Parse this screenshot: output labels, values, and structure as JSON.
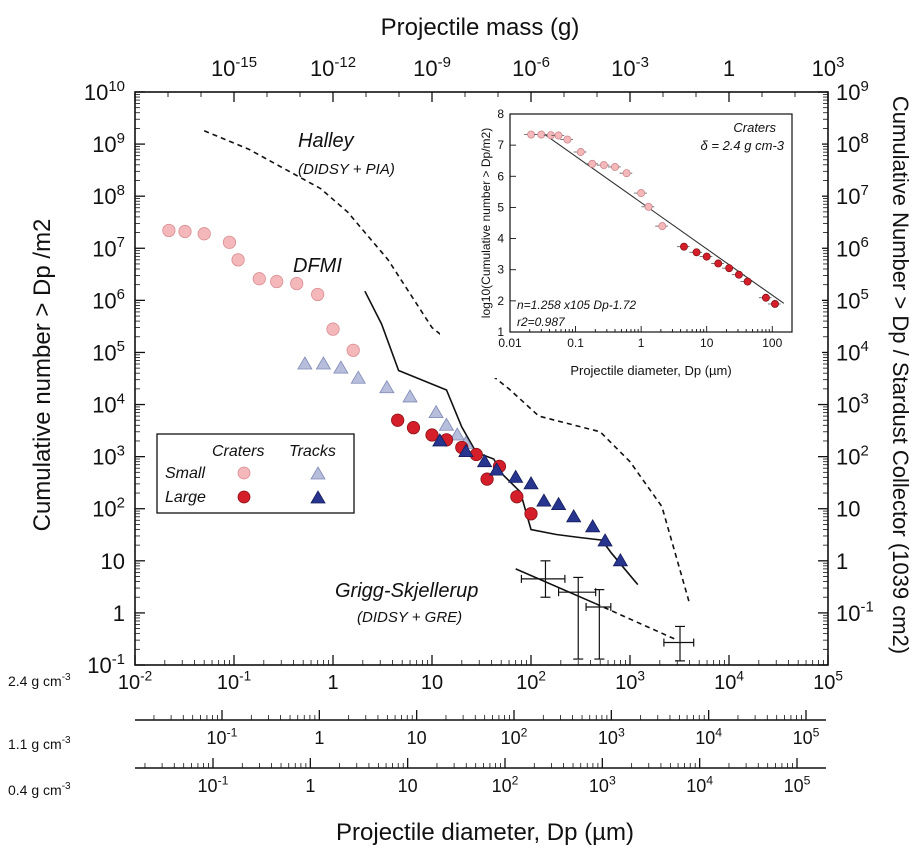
{
  "chart_data": {
    "type": "scatter",
    "title": "",
    "xlabel": "Projectile diameter, Dp (µm)",
    "ylabel": "Cumulative number > Dp /m2",
    "ylabel_right": "Cumulative Number > Dp / Stardust Collector (1039 cm2)",
    "xlabel_top": "Projectile mass (g)",
    "xscale": "log",
    "yscale": "log",
    "xlim": [
      0.01,
      100000
    ],
    "ylim": [
      0.1,
      10000000000
    ],
    "top_axis": {
      "range": [
        1e-18,
        1000
      ],
      "ticks": [
        "10-15",
        "10-12",
        "10-9",
        "10-6",
        "10-3",
        "1",
        "103"
      ]
    },
    "right_axis": {
      "ticks": [
        "109",
        "108",
        "107",
        "106",
        "105",
        "104",
        "103",
        "102",
        "10",
        "1",
        "10-1"
      ]
    },
    "left_ticks": [
      "1010",
      "109",
      "108",
      "107",
      "106",
      "105",
      "104",
      "103",
      "102",
      "10",
      "1",
      "10-1"
    ],
    "bottom_ticks": [
      "10-2",
      "10-1",
      "1",
      "10",
      "102",
      "103",
      "104",
      "105"
    ],
    "density_axes": [
      {
        "label": "2.4 g cm-3"
      },
      {
        "label": "1.1 g cm-3",
        "ticks": [
          "10-1",
          "1",
          "10",
          "102",
          "103",
          "104",
          "105"
        ]
      },
      {
        "label": "0.4 g cm-3",
        "ticks": [
          "10-1",
          "1",
          "10",
          "102",
          "103",
          "104",
          "105"
        ]
      }
    ],
    "legend": {
      "position": "left",
      "col_craters": "Craters",
      "col_tracks": "Tracks",
      "row_small": "Small",
      "row_large": "Large"
    },
    "annotations": {
      "halley": "Halley",
      "halley_sub": "(DIDSY + PIA)",
      "dfmi": "DFMI",
      "gs": "Grigg-Skjellerup",
      "gs_sub": "(DIDSY + GRE)"
    },
    "colors": {
      "small_crater": "#f4b8bb",
      "large_crater": "#d41f2a",
      "small_track": "#b7bedc",
      "large_track": "#28358f"
    },
    "series": [
      {
        "name": "Craters Small",
        "points": [
          [
            0.022,
            22000000.0
          ],
          [
            0.032,
            21000000.0
          ],
          [
            0.05,
            19000000.0
          ],
          [
            0.09,
            13000000.0
          ],
          [
            0.11,
            6000000.0
          ],
          [
            0.18,
            2600000.0
          ],
          [
            0.27,
            2300000.0
          ],
          [
            0.43,
            2100000.0
          ],
          [
            0.7,
            1300000.0
          ],
          [
            1.0,
            280000.0
          ],
          [
            1.6,
            110000.0
          ]
        ]
      },
      {
        "name": "Craters Large",
        "points": [
          [
            4.5,
            5000.0
          ],
          [
            6.5,
            3600.0
          ],
          [
            10,
            2600.0
          ],
          [
            14,
            2100.0
          ],
          [
            20,
            1500.0
          ],
          [
            28,
            1100.0
          ],
          [
            36,
            370.0
          ],
          [
            48,
            650.0
          ],
          [
            72,
            170.0
          ],
          [
            100,
            80.0
          ]
        ]
      },
      {
        "name": "Tracks Small",
        "points": [
          [
            0.52,
            60000.0
          ],
          [
            0.8,
            60000.0
          ],
          [
            1.2,
            50000.0
          ],
          [
            1.8,
            32000.0
          ],
          [
            3.5,
            21000.0
          ],
          [
            6,
            14000.0
          ],
          [
            11,
            7000.0
          ],
          [
            14,
            4000.0
          ],
          [
            18,
            2600.0
          ],
          [
            22,
            1800.0
          ]
        ]
      },
      {
        "name": "Tracks Large",
        "points": [
          [
            12,
            2000.0
          ],
          [
            22,
            1250.0
          ],
          [
            34,
            800.0
          ],
          [
            45,
            550.0
          ],
          [
            70,
            400.0
          ],
          [
            100,
            300.0
          ],
          [
            135,
            140.0
          ],
          [
            190,
            120.0
          ],
          [
            270,
            70.0
          ],
          [
            420,
            45.0
          ],
          [
            560,
            24.0
          ],
          [
            800,
            10.0
          ]
        ]
      },
      {
        "name": "Halley",
        "style": "dashed",
        "points": [
          [
            0.05,
            1800000000.0
          ],
          [
            0.14,
            800000000.0
          ],
          [
            0.75,
            140000000.0
          ],
          [
            1.4,
            50000000.0
          ],
          [
            3.6,
            6000000.0
          ],
          [
            10,
            300000.0
          ],
          [
            60,
            20000.0
          ],
          [
            120,
            6000.0
          ],
          [
            500,
            3000.0
          ],
          [
            1000,
            800.0
          ],
          [
            2100,
            110.0
          ],
          [
            4000,
            1.5
          ]
        ]
      },
      {
        "name": "DFMI",
        "style": "solid",
        "points": [
          [
            2.1,
            1500000.0
          ],
          [
            3.1,
            350000.0
          ],
          [
            4.6,
            45000.0
          ],
          [
            14,
            19000.0
          ],
          [
            20,
            3700.0
          ],
          [
            28,
            1200.0
          ],
          [
            42,
            900.0
          ],
          [
            52,
            450.0
          ],
          [
            78,
            210.0
          ],
          [
            100,
            40.0
          ],
          [
            180,
            32.0
          ],
          [
            310,
            28.0
          ],
          [
            520,
            25.0
          ],
          [
            650,
            14.0
          ],
          [
            1200,
            3.5
          ]
        ]
      },
      {
        "name": "Grigg-Skjellerup",
        "style": "solid",
        "points": [
          [
            70,
            7
          ],
          [
            450,
            1.5
          ]
        ]
      },
      {
        "name": "Grigg-Skjellerup extrapolation",
        "style": "dashed",
        "points": [
          [
            450,
            1.5
          ],
          [
            3000,
            0.3
          ]
        ]
      },
      {
        "name": "Grigg-Skjellerup data",
        "style": "errorbars",
        "points": [
          [
            140,
            4.5,
            2,
            10,
            80,
            220
          ],
          [
            300,
            2.5,
            0.13,
            4.8,
            190,
            450
          ],
          [
            490,
            1.3,
            0.13,
            2.8,
            360,
            640
          ],
          [
            3200,
            0.27,
            0.12,
            0.55,
            2200,
            4400
          ]
        ]
      }
    ],
    "inset": {
      "title": "Craters",
      "density": "δ = 2.4 g cm-3",
      "fit": "n=1.258 x105 Dp-1.72",
      "r2": "r2=0.987",
      "xlabel": "Projectile diameter, Dp (µm)",
      "ylabel": "log10(Cumulative number > Dp/m2)",
      "xlim": [
        0.01,
        200
      ],
      "ylim": [
        1,
        8
      ],
      "xticks": [
        "0.01",
        "0.1",
        "1",
        "10",
        "100"
      ],
      "yticks": [
        "1",
        "2",
        "3",
        "4",
        "5",
        "6",
        "7",
        "8"
      ],
      "fit_line": [
        [
          0.03,
          7.42
        ],
        [
          150,
          1.92
        ]
      ],
      "small": [
        [
          0.021,
          7.34
        ],
        [
          0.03,
          7.34
        ],
        [
          0.042,
          7.32
        ],
        [
          0.055,
          7.31
        ],
        [
          0.075,
          7.18
        ],
        [
          0.12,
          6.78
        ],
        [
          0.18,
          6.4
        ],
        [
          0.27,
          6.36
        ],
        [
          0.4,
          6.3
        ],
        [
          0.6,
          6.1
        ],
        [
          1.0,
          5.46
        ],
        [
          1.3,
          5.02
        ],
        [
          2.1,
          4.4
        ]
      ],
      "large": [
        [
          4.5,
          3.74
        ],
        [
          7,
          3.56
        ],
        [
          10,
          3.42
        ],
        [
          15,
          3.2
        ],
        [
          22,
          3.05
        ],
        [
          31,
          2.84
        ],
        [
          42,
          2.62
        ],
        [
          80,
          2.1
        ],
        [
          110,
          1.9
        ]
      ]
    }
  }
}
